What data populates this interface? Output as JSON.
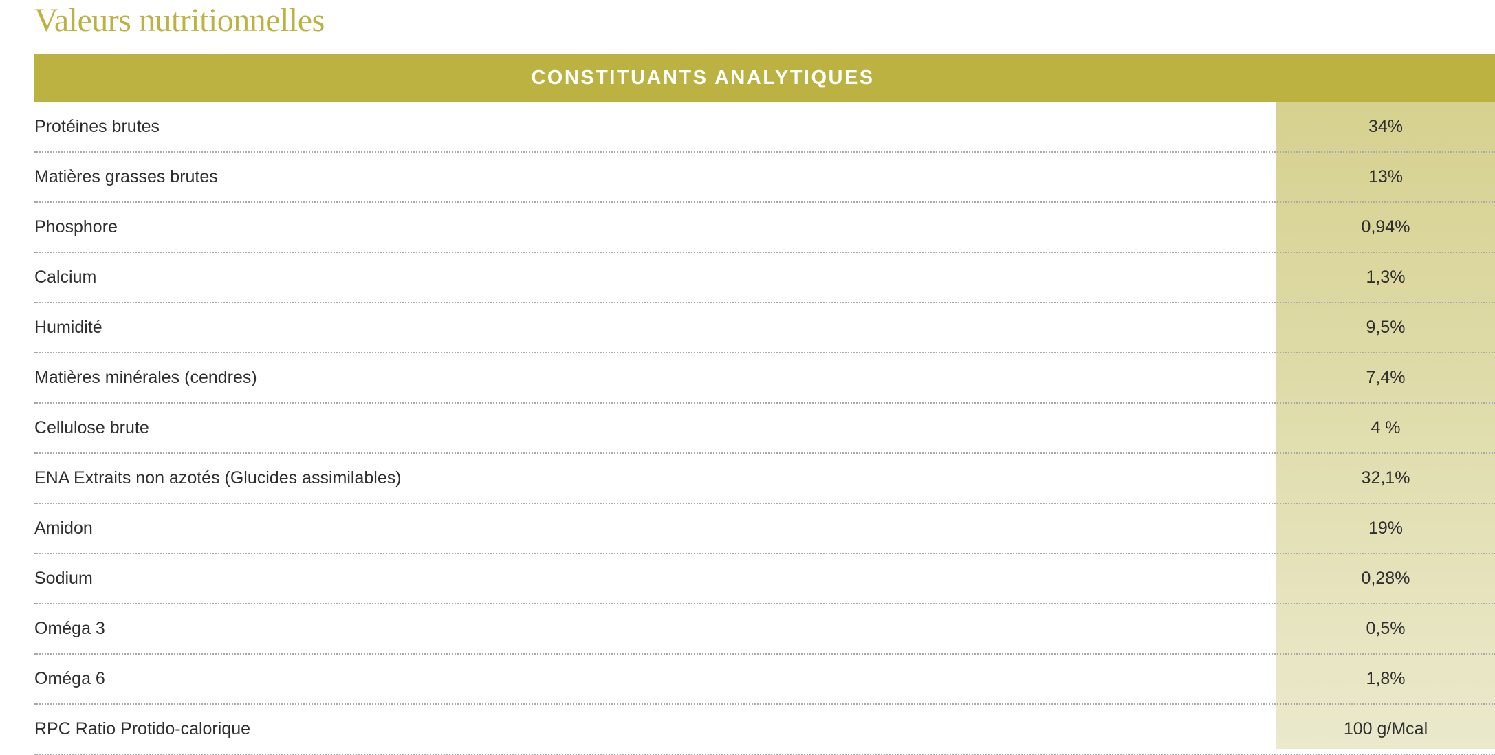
{
  "title": "Valeurs nutritionnelles",
  "table": {
    "header": "CONSTITUANTS ANALYTIQUES",
    "rows": [
      {
        "label": "Protéines brutes",
        "value": "34%"
      },
      {
        "label": "Matières grasses brutes",
        "value": "13%"
      },
      {
        "label": "Phosphore",
        "value": "0,94%"
      },
      {
        "label": "Calcium",
        "value": "1,3%"
      },
      {
        "label": "Humidité",
        "value": "9,5%"
      },
      {
        "label": "Matières minérales (cendres)",
        "value": "7,4%"
      },
      {
        "label": "Cellulose brute",
        "value": "4 %"
      },
      {
        "label": "ENA Extraits non azotés (Glucides assimilables)",
        "value": "32,1%"
      },
      {
        "label": "Amidon",
        "value": "19%"
      },
      {
        "label": "Sodium",
        "value": "0,28%"
      },
      {
        "label": "Oméga 3",
        "value": "0,5%"
      },
      {
        "label": "Oméga 6",
        "value": "1,8%"
      },
      {
        "label": "RPC Ratio Protido-calorique",
        "value": "100 g/Mcal"
      }
    ]
  },
  "colors": {
    "accent": "#bcb241",
    "value_column_top": "#d6d18f",
    "value_column_bottom": "#ebe9cc"
  }
}
